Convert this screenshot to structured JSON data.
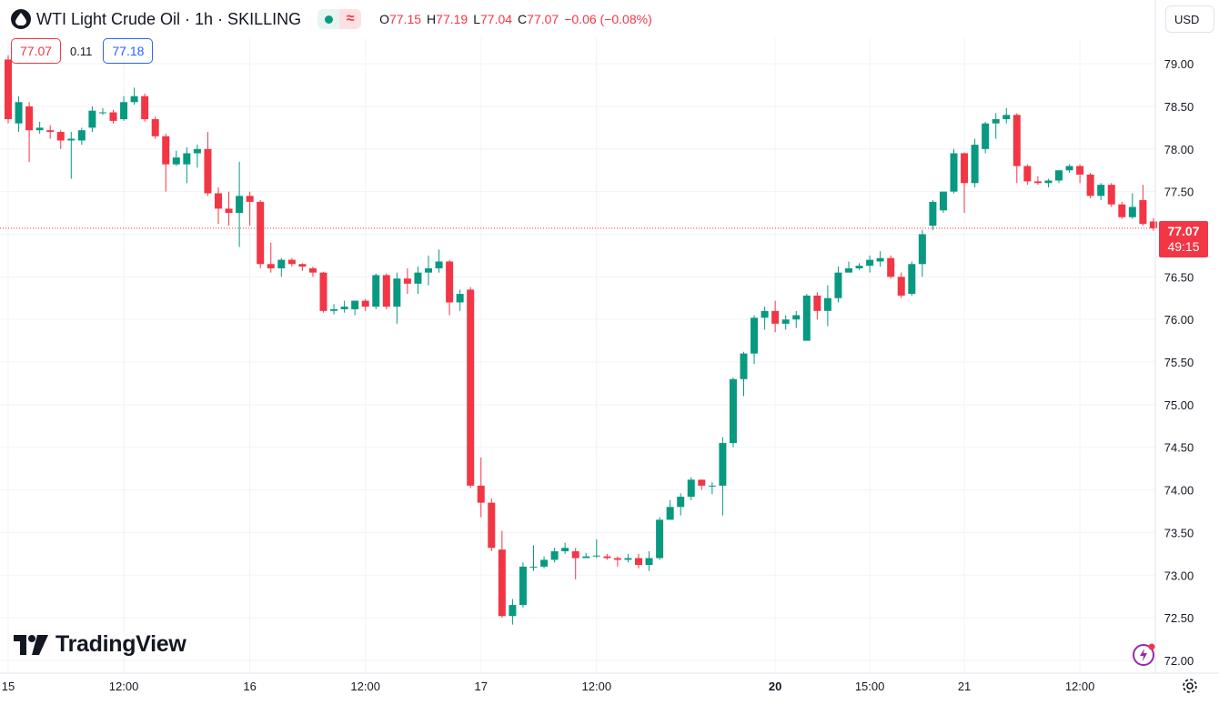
{
  "header": {
    "title": "WTI Light Crude Oil · 1h · SKILLING",
    "ohlc": {
      "o_label": "O",
      "o": "77.15",
      "h_label": "H",
      "h": "77.19",
      "l_label": "L",
      "l": "77.04",
      "c_label": "C",
      "c": "77.07",
      "change": "−0.06 (−0.08%)"
    },
    "currency": "USD"
  },
  "prices": {
    "bid": "77.07",
    "spread": "0.11",
    "ask": "77.18"
  },
  "last_price": {
    "price": "77.07",
    "countdown": "49:15"
  },
  "branding": {
    "logo_text": "TradingView"
  },
  "colors": {
    "up": "#089981",
    "down": "#f23645",
    "ask": "#2962ff",
    "grid": "#f0f3fa",
    "text": "#131722"
  },
  "icons": {
    "symbol": "drop-icon",
    "status": "market-open-icon",
    "delayed": "wave-icon",
    "bolt": "bolt-icon",
    "settings": "gear-icon"
  },
  "chart_data": {
    "type": "candlestick",
    "title": "WTI Light Crude Oil · 1h · SKILLING",
    "ylim": [
      71.85,
      79.3
    ],
    "y_ticks": [
      "79.00",
      "78.50",
      "78.00",
      "77.50",
      "77.00",
      "76.50",
      "76.00",
      "75.50",
      "75.00",
      "74.50",
      "74.00",
      "73.50",
      "73.00",
      "72.50",
      "72.00"
    ],
    "x_ticks": [
      {
        "label": "15",
        "i": 0,
        "bold": false
      },
      {
        "label": "12:00",
        "i": 11,
        "bold": false
      },
      {
        "label": "16",
        "i": 23,
        "bold": false
      },
      {
        "label": "12:00",
        "i": 34,
        "bold": false
      },
      {
        "label": "17",
        "i": 45,
        "bold": false
      },
      {
        "label": "12:00",
        "i": 56,
        "bold": false
      },
      {
        "label": "20",
        "i": 73,
        "bold": true
      },
      {
        "label": "15:00",
        "i": 82,
        "bold": false
      },
      {
        "label": "21",
        "i": 91,
        "bold": false
      },
      {
        "label": "12:00",
        "i": 102,
        "bold": false
      }
    ],
    "last_price": 77.07,
    "candles": [
      [
        79.05,
        78.35,
        79.1,
        78.3
      ],
      [
        78.3,
        78.55,
        78.62,
        78.2
      ],
      [
        78.5,
        78.22,
        78.55,
        77.85
      ],
      [
        78.22,
        78.25,
        78.32,
        78.18
      ],
      [
        78.22,
        78.2,
        78.28,
        78.12
      ],
      [
        78.2,
        78.1,
        78.22,
        78.0
      ],
      [
        78.1,
        78.12,
        78.2,
        77.65
      ],
      [
        78.1,
        78.22,
        78.25,
        78.05
      ],
      [
        78.25,
        78.45,
        78.5,
        78.2
      ],
      [
        78.42,
        78.43,
        78.48,
        78.4
      ],
      [
        78.43,
        78.33,
        78.46,
        78.3
      ],
      [
        78.35,
        78.55,
        78.62,
        78.33
      ],
      [
        78.55,
        78.62,
        78.72,
        78.52
      ],
      [
        78.62,
        78.35,
        78.65,
        78.32
      ],
      [
        78.35,
        78.15,
        78.38,
        78.12
      ],
      [
        78.15,
        77.82,
        78.18,
        77.5
      ],
      [
        77.82,
        77.9,
        77.98,
        77.8
      ],
      [
        77.82,
        77.95,
        78.02,
        77.6
      ],
      [
        77.95,
        78.0,
        78.05,
        77.78
      ],
      [
        78.0,
        77.48,
        78.2,
        77.45
      ],
      [
        77.48,
        77.3,
        77.55,
        77.12
      ],
      [
        77.3,
        77.25,
        77.5,
        77.1
      ],
      [
        77.25,
        77.45,
        77.85,
        76.85
      ],
      [
        77.45,
        77.38,
        77.5,
        77.1
      ],
      [
        77.38,
        76.65,
        77.4,
        76.6
      ],
      [
        76.65,
        76.6,
        76.9,
        76.55
      ],
      [
        76.6,
        76.7,
        76.72,
        76.5
      ],
      [
        76.7,
        76.65,
        76.72,
        76.62
      ],
      [
        76.65,
        76.62,
        76.66,
        76.57
      ],
      [
        76.6,
        76.55,
        76.62,
        76.5
      ],
      [
        76.55,
        76.1,
        76.56,
        76.08
      ],
      [
        76.1,
        76.12,
        76.18,
        76.06
      ],
      [
        76.12,
        76.15,
        76.22,
        76.08
      ],
      [
        76.12,
        76.22,
        76.22,
        76.05
      ],
      [
        76.22,
        76.15,
        76.24,
        76.1
      ],
      [
        76.15,
        76.52,
        76.54,
        76.12
      ],
      [
        76.52,
        76.15,
        76.54,
        76.12
      ],
      [
        76.15,
        76.48,
        76.55,
        75.95
      ],
      [
        76.48,
        76.42,
        76.6,
        76.3
      ],
      [
        76.42,
        76.55,
        76.62,
        76.3
      ],
      [
        76.55,
        76.6,
        76.75,
        76.4
      ],
      [
        76.6,
        76.68,
        76.82,
        76.55
      ],
      [
        76.68,
        76.2,
        76.7,
        76.05
      ],
      [
        76.2,
        76.3,
        76.35,
        76.1
      ],
      [
        76.35,
        74.05,
        76.38,
        74.02
      ],
      [
        74.05,
        73.85,
        74.38,
        73.68
      ],
      [
        73.85,
        73.32,
        73.9,
        73.28
      ],
      [
        73.3,
        72.52,
        73.52,
        72.5
      ],
      [
        72.52,
        72.65,
        72.72,
        72.42
      ],
      [
        72.65,
        73.1,
        73.15,
        72.62
      ],
      [
        73.1,
        73.1,
        73.35,
        73.05
      ],
      [
        73.1,
        73.18,
        73.22,
        73.08
      ],
      [
        73.18,
        73.28,
        73.32,
        73.15
      ],
      [
        73.28,
        73.32,
        73.38,
        73.25
      ],
      [
        73.28,
        73.2,
        73.32,
        72.95
      ],
      [
        73.2,
        73.22,
        73.26,
        73.2
      ],
      [
        73.22,
        73.23,
        73.42,
        73.2
      ],
      [
        73.22,
        73.2,
        73.25,
        73.18
      ],
      [
        73.2,
        73.18,
        73.22,
        73.1
      ],
      [
        73.18,
        73.2,
        73.25,
        73.15
      ],
      [
        73.2,
        73.12,
        73.25,
        73.08
      ],
      [
        73.12,
        73.2,
        73.28,
        73.05
      ],
      [
        73.2,
        73.65,
        73.68,
        73.18
      ],
      [
        73.65,
        73.8,
        73.88,
        73.65
      ],
      [
        73.8,
        73.92,
        73.96,
        73.7
      ],
      [
        73.92,
        74.12,
        74.15,
        73.88
      ],
      [
        74.12,
        74.05,
        74.12,
        74.0
      ],
      [
        74.05,
        74.05,
        74.09,
        73.95
      ],
      [
        74.05,
        74.55,
        74.62,
        73.7
      ],
      [
        74.55,
        75.3,
        75.32,
        74.5
      ],
      [
        75.3,
        75.6,
        75.62,
        75.1
      ],
      [
        75.6,
        76.02,
        76.05,
        75.48
      ],
      [
        76.02,
        76.1,
        76.15,
        75.88
      ],
      [
        76.1,
        75.95,
        76.22,
        75.85
      ],
      [
        75.95,
        76.0,
        76.05,
        75.88
      ],
      [
        76.0,
        76.05,
        76.1,
        75.9
      ],
      [
        75.75,
        76.28,
        76.3,
        75.75
      ],
      [
        76.28,
        76.1,
        76.32,
        76.0
      ],
      [
        76.1,
        76.25,
        76.4,
        75.92
      ],
      [
        76.25,
        76.55,
        76.62,
        76.2
      ],
      [
        76.55,
        76.6,
        76.68,
        76.58
      ],
      [
        76.6,
        76.63,
        76.66,
        76.58
      ],
      [
        76.63,
        76.7,
        76.75,
        76.55
      ],
      [
        76.68,
        76.72,
        76.8,
        76.62
      ],
      [
        76.72,
        76.5,
        76.75,
        76.48
      ],
      [
        76.5,
        76.28,
        76.55,
        76.25
      ],
      [
        76.3,
        76.65,
        76.68,
        76.28
      ],
      [
        76.65,
        77.0,
        77.05,
        76.5
      ],
      [
        77.1,
        77.38,
        77.4,
        77.05
      ],
      [
        77.28,
        77.5,
        77.5,
        77.25
      ],
      [
        77.5,
        77.95,
        78.0,
        77.48
      ],
      [
        77.95,
        77.6,
        77.96,
        77.25
      ],
      [
        77.6,
        78.05,
        78.12,
        77.55
      ],
      [
        78.0,
        78.3,
        78.32,
        77.95
      ],
      [
        78.3,
        78.35,
        78.42,
        78.12
      ],
      [
        78.35,
        78.4,
        78.48,
        78.3
      ],
      [
        78.4,
        77.8,
        78.42,
        77.6
      ],
      [
        77.8,
        77.62,
        77.82,
        77.58
      ],
      [
        77.62,
        77.6,
        77.68,
        77.58
      ],
      [
        77.6,
        77.63,
        77.65,
        77.55
      ],
      [
        77.63,
        77.75,
        77.75,
        77.6
      ],
      [
        77.75,
        77.8,
        77.82,
        77.72
      ],
      [
        77.8,
        77.7,
        77.82,
        77.6
      ],
      [
        77.7,
        77.45,
        77.72,
        77.42
      ],
      [
        77.45,
        77.58,
        77.6,
        77.4
      ],
      [
        77.58,
        77.35,
        77.6,
        77.32
      ],
      [
        77.35,
        77.2,
        77.38,
        77.18
      ],
      [
        77.2,
        77.32,
        77.48,
        77.18
      ],
      [
        77.4,
        77.12,
        77.58,
        77.1
      ],
      [
        77.15,
        77.07,
        77.19,
        77.04
      ]
    ]
  }
}
